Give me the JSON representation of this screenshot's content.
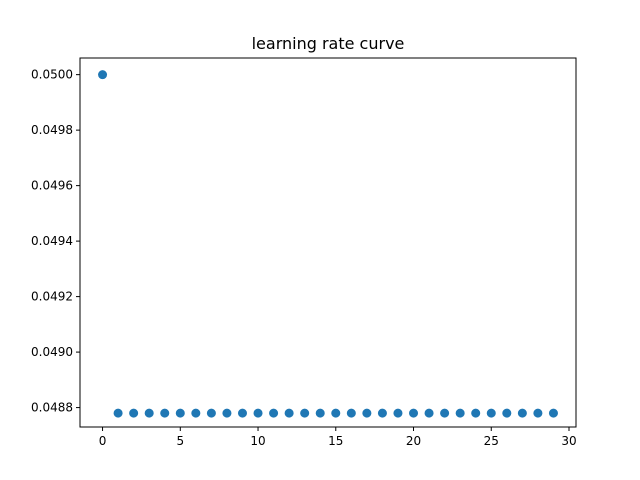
{
  "chart_data": {
    "type": "scatter",
    "title": "learning rate curve",
    "xlabel": "",
    "ylabel": "",
    "xlim": [
      -1.45,
      30.45
    ],
    "ylim": [
      0.04873,
      0.05006
    ],
    "x_ticks": [
      0,
      5,
      10,
      15,
      20,
      25,
      30
    ],
    "y_ticks": [
      0.0488,
      0.049,
      0.0492,
      0.0494,
      0.0496,
      0.0498,
      0.05
    ],
    "y_tick_labels": [
      "0.0488",
      "0.0490",
      "0.0492",
      "0.0494",
      "0.0496",
      "0.0498",
      "0.0500"
    ],
    "grid": false,
    "marker_color": "#1f77b4",
    "series": [
      {
        "x": [
          0,
          1,
          2,
          3,
          4,
          5,
          6,
          7,
          8,
          9,
          10,
          11,
          12,
          13,
          14,
          15,
          16,
          17,
          18,
          19,
          20,
          21,
          22,
          23,
          24,
          25,
          26,
          27,
          28,
          29
        ],
        "y": [
          0.05,
          0.04878,
          0.04878,
          0.04878,
          0.04878,
          0.04878,
          0.04878,
          0.04878,
          0.04878,
          0.04878,
          0.04878,
          0.04878,
          0.04878,
          0.04878,
          0.04878,
          0.04878,
          0.04878,
          0.04878,
          0.04878,
          0.04878,
          0.04878,
          0.04878,
          0.04878,
          0.04878,
          0.04878,
          0.04878,
          0.04878,
          0.04878,
          0.04878,
          0.04878
        ]
      }
    ]
  }
}
